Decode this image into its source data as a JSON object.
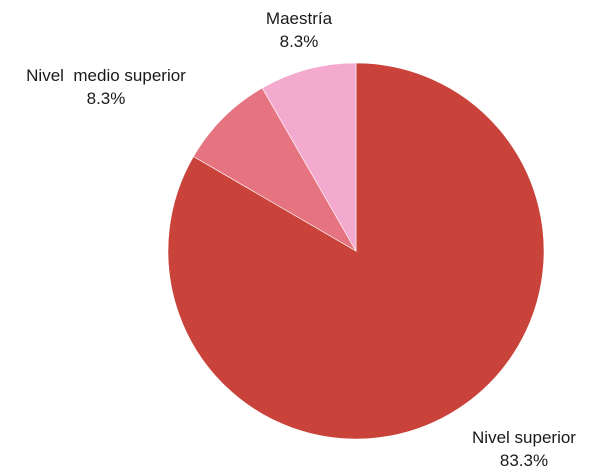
{
  "chart_data": {
    "type": "pie",
    "title": "",
    "start_angle_deg": 0,
    "direction": "clockwise",
    "legend": "none",
    "slices": [
      {
        "label": "Nivel superior",
        "value": 83.3,
        "value_label": "83.3%",
        "color": "#c9433a"
      },
      {
        "label": "Nivel  medio superior",
        "value": 8.3,
        "value_label": "8.3%",
        "color": "#e57480"
      },
      {
        "label": "Maestría",
        "value": 8.3,
        "value_label": "8.3%",
        "color": "#f4a9cf"
      }
    ]
  }
}
